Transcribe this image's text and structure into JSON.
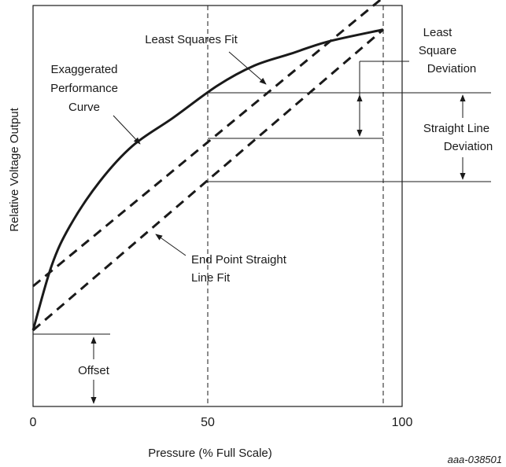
{
  "chart_data": {
    "type": "line",
    "xlabel": "Pressure (% Full Scale)",
    "ylabel": "Relative Voltage Output",
    "x_ticks": [
      "0",
      "50",
      "100"
    ],
    "xlim": [
      0,
      100
    ],
    "ylim": [
      0,
      100
    ],
    "grid": false,
    "series": [
      {
        "name": "Exaggerated Performance Curve",
        "style": "solid",
        "x": [
          0,
          5,
          10,
          18,
          27,
          38,
          50,
          60,
          70,
          80,
          95
        ],
        "y": [
          19,
          35,
          45,
          56,
          65,
          72,
          80,
          85,
          88,
          91,
          94
        ]
      },
      {
        "name": "Least Squares Fit",
        "style": "dashed",
        "x": [
          0,
          95
        ],
        "y": [
          30,
          102
        ]
      },
      {
        "name": "End Point Straight Line Fit",
        "style": "dashed",
        "x": [
          0,
          95
        ],
        "y": [
          19,
          94
        ]
      }
    ],
    "reference_lines": [
      {
        "type": "vertical",
        "x": 50,
        "style": "dashed"
      },
      {
        "type": "vertical",
        "x": 95,
        "style": "dashed"
      }
    ],
    "annotations": {
      "least_squares_fit": "Least Squares Fit",
      "performance_curve": [
        "Exaggerated",
        "Performance",
        "Curve"
      ],
      "least_square_deviation": [
        "Least",
        "Square",
        "Deviation"
      ],
      "straight_line_deviation": [
        "Straight Line",
        "Deviation"
      ],
      "end_point_fit": [
        "End Point Straight",
        "Line Fit"
      ],
      "offset": "Offset"
    },
    "figure_id": "aaa-038501"
  }
}
